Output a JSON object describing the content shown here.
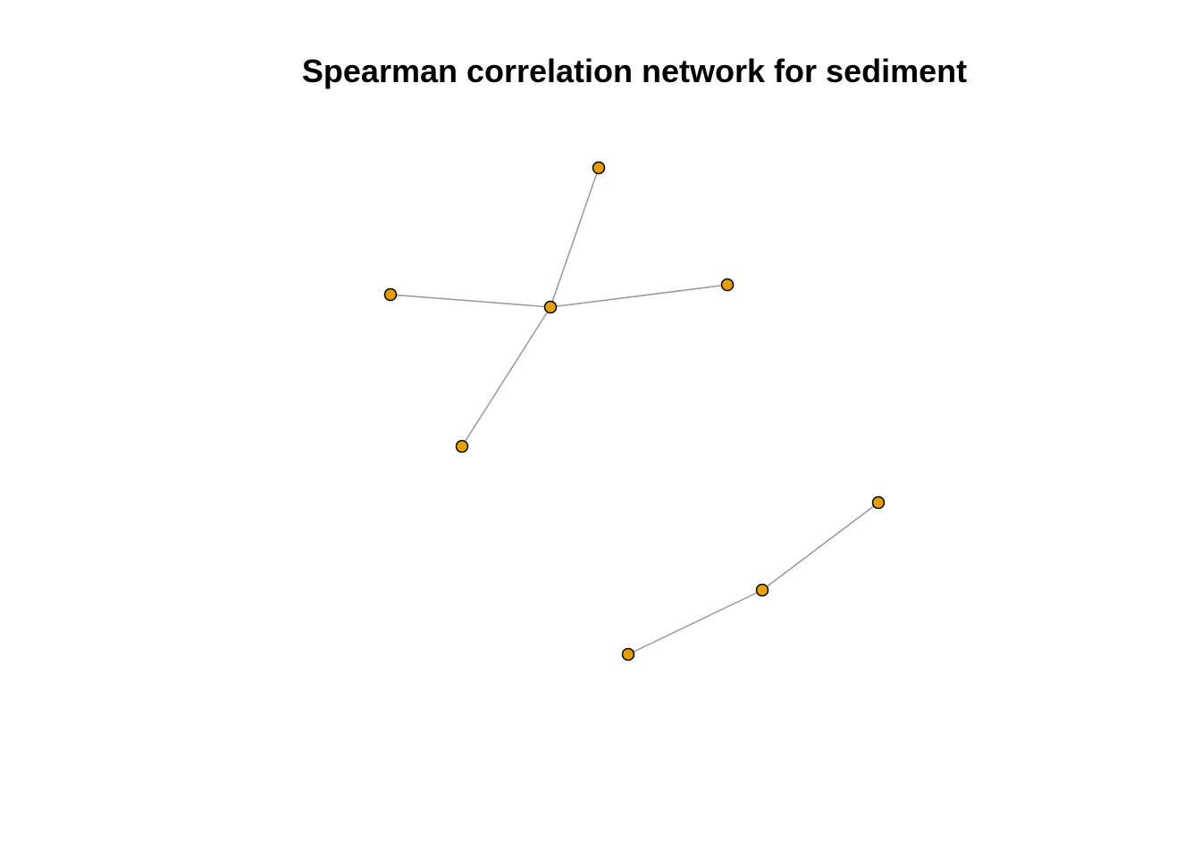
{
  "title": "Spearman correlation network for sediment",
  "colors": {
    "node_fill": "#E69F00",
    "node_stroke": "#000000",
    "edge": "#999999",
    "background": "#FFFFFF"
  },
  "network": {
    "nodes": [
      {
        "id": "n1"
      },
      {
        "id": "n2"
      },
      {
        "id": "n3"
      },
      {
        "id": "n4"
      },
      {
        "id": "n5"
      },
      {
        "id": "n6"
      },
      {
        "id": "n7"
      },
      {
        "id": "n8"
      }
    ],
    "edges": [
      {
        "source": "n1",
        "target": "n3"
      },
      {
        "source": "n2",
        "target": "n3"
      },
      {
        "source": "n3",
        "target": "n4"
      },
      {
        "source": "n3",
        "target": "n5"
      },
      {
        "source": "n7",
        "target": "n6"
      },
      {
        "source": "n8",
        "target": "n7"
      }
    ]
  }
}
